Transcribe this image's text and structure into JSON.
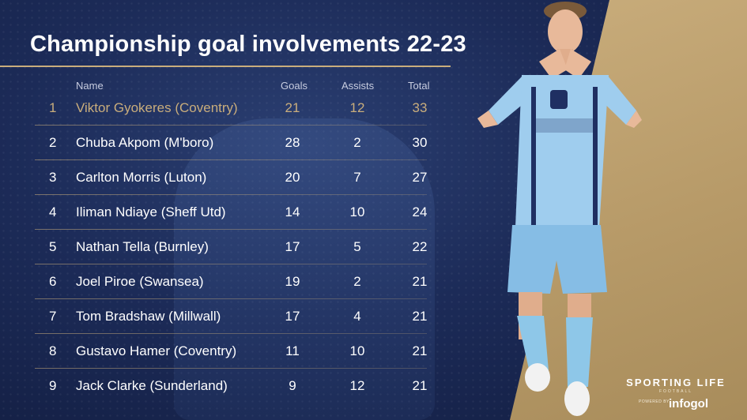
{
  "title": "Championship goal involvements 22-23",
  "columns": {
    "name": "Name",
    "goals": "Goals",
    "assists": "Assists",
    "total": "Total"
  },
  "rows": [
    {
      "rank": "1",
      "name": "Viktor Gyokeres (Coventry)",
      "goals": "21",
      "assists": "12",
      "total": "33"
    },
    {
      "rank": "2",
      "name": "Chuba Akpom (M'boro)",
      "goals": "28",
      "assists": "2",
      "total": "30"
    },
    {
      "rank": "3",
      "name": "Carlton Morris (Luton)",
      "goals": "20",
      "assists": "7",
      "total": "27"
    },
    {
      "rank": "4",
      "name": "Iliman Ndiaye (Sheff Utd)",
      "goals": "14",
      "assists": "10",
      "total": "24"
    },
    {
      "rank": "5",
      "name": "Nathan Tella (Burnley)",
      "goals": "17",
      "assists": "5",
      "total": "22"
    },
    {
      "rank": "6",
      "name": "Joel Piroe (Swansea)",
      "goals": "19",
      "assists": "2",
      "total": "21"
    },
    {
      "rank": "7",
      "name": "Tom Bradshaw (Millwall)",
      "goals": "17",
      "assists": "4",
      "total": "21"
    },
    {
      "rank": "8",
      "name": "Gustavo Hamer (Coventry)",
      "goals": "11",
      "assists": "10",
      "total": "21"
    },
    {
      "rank": "9",
      "name": "Jack Clarke (Sunderland)",
      "goals": "9",
      "assists": "12",
      "total": "21"
    }
  ],
  "brand": {
    "name": "SPORTING LIFE",
    "sub": "FOOTBALL",
    "powered": "POWERED BY",
    "partner": "infogol"
  },
  "colors": {
    "accent_gold": "#c9ad7c",
    "navy": "#1c2b58",
    "kit_sky_blue": "#8fc3e8"
  }
}
